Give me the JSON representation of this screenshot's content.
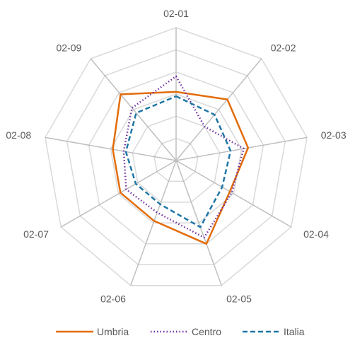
{
  "chart_data": {
    "type": "radar",
    "categories": [
      "02-01",
      "02-02",
      "02-03",
      "02-04",
      "02-05",
      "02-06",
      "02-07",
      "02-08",
      "02-09"
    ],
    "rmax": 6,
    "grid_levels": 6,
    "series": [
      {
        "name": "Umbria",
        "values": [
          3.1,
          3.6,
          3.3,
          2.8,
          4.0,
          2.9,
          2.9,
          2.9,
          3.9
        ],
        "color": "#E36C09",
        "style": "solid"
      },
      {
        "name": "Centro",
        "values": [
          3.8,
          2.0,
          3.1,
          2.9,
          3.7,
          2.5,
          2.6,
          2.4,
          3.1
        ],
        "color": "#7030A0",
        "style": "dotted"
      },
      {
        "name": "Italia",
        "values": [
          2.9,
          2.7,
          2.5,
          2.4,
          3.2,
          2.1,
          2.1,
          2.3,
          2.8
        ],
        "color": "#1F77A6",
        "style": "dashed"
      }
    ]
  }
}
